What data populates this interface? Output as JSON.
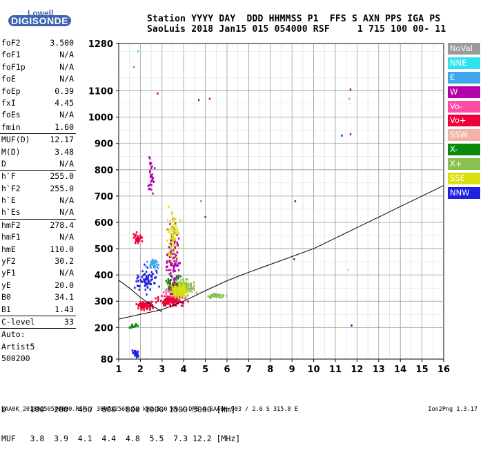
{
  "logo": {
    "top": "Lowell",
    "bottom": "DIGISONDE"
  },
  "header": {
    "labels": "Station YYYY DAY  DDD HHMMSS P1  FFS S AXN PPS IGA PS",
    "values": "SaoLuis 2018 Jan15 015 054000 RSF     1 715 100 00- 11"
  },
  "parameters": [
    [
      {
        "name": "foF2",
        "value": "3.500"
      },
      {
        "name": "foF1",
        "value": "N/A"
      },
      {
        "name": "foF1p",
        "value": "N/A"
      },
      {
        "name": "foE",
        "value": "N/A"
      },
      {
        "name": "foEp",
        "value": "0.39"
      },
      {
        "name": "fxI",
        "value": "4.45"
      },
      {
        "name": "foEs",
        "value": "N/A"
      },
      {
        "name": "fmin",
        "value": "1.60"
      }
    ],
    [
      {
        "name": "MUF(D)",
        "value": "12.17"
      },
      {
        "name": "M(D)",
        "value": "3.48"
      },
      {
        "name": "D",
        "value": "N/A"
      }
    ],
    [
      {
        "name": "h`F",
        "value": "255.0"
      },
      {
        "name": "h`F2",
        "value": "255.0"
      },
      {
        "name": "h`E",
        "value": "N/A"
      },
      {
        "name": "h`Es",
        "value": "N/A"
      }
    ],
    [
      {
        "name": "hmF2",
        "value": "278.4"
      },
      {
        "name": "hmF1",
        "value": "N/A"
      },
      {
        "name": "hmE",
        "value": "110.0"
      },
      {
        "name": "yF2",
        "value": "30.2"
      },
      {
        "name": "yF1",
        "value": "N/A"
      },
      {
        "name": "yE",
        "value": "20.0"
      },
      {
        "name": "B0",
        "value": "34.1"
      },
      {
        "name": "B1",
        "value": "1.43"
      }
    ],
    [
      {
        "name": "C-level",
        "value": "33"
      }
    ],
    [
      {
        "name": "Auto:",
        "value": ""
      },
      {
        "name": "Artist5",
        "value": ""
      },
      {
        "name": "500200",
        "value": ""
      }
    ]
  ],
  "legend": [
    {
      "label": "NoVal",
      "color": "#9a9a9a"
    },
    {
      "label": "NNE",
      "color": "#2ee3ee"
    },
    {
      "label": "E",
      "color": "#3fa6ee"
    },
    {
      "label": "W",
      "color": "#b400a8"
    },
    {
      "label": "Vo-",
      "color": "#ff4aa6"
    },
    {
      "label": "Vo+",
      "color": "#f00038"
    },
    {
      "label": "SSW",
      "color": "#f2b2a6"
    },
    {
      "label": "X-",
      "color": "#0c8a0c"
    },
    {
      "label": "X+",
      "color": "#8ac050"
    },
    {
      "label": "SSE",
      "color": "#d8e010"
    },
    {
      "label": "NNW",
      "color": "#2020e0"
    }
  ],
  "muf_table": {
    "d_row": "D     100  200  400  600  800 1000 1500 3000 [km]",
    "muf_row": "MUF   3.8  3.9  4.1  4.4  4.8  5.5  7.3 12.2 [MHz]"
  },
  "footer": "SAA0K_20180150540000.RSF / 300fx256h 50 kHz 5.0 km / DPS-4 SAA0K 903 / 2.6 S 315.8 E",
  "version": "Ion2Png 1.3.17",
  "chart_data": {
    "type": "scatter",
    "title": "",
    "xlabel": "",
    "ylabel": "",
    "xlim": [
      1,
      16
    ],
    "ylim": [
      80,
      1280
    ],
    "x_ticks": [
      1,
      2,
      3,
      4,
      5,
      6,
      7,
      8,
      9,
      10,
      11,
      12,
      13,
      14,
      15,
      16
    ],
    "y_ticks": [
      80,
      200,
      300,
      400,
      500,
      600,
      700,
      800,
      900,
      1000,
      1100,
      1280
    ],
    "grid": true,
    "clusters": [
      {
        "series": "Vo+",
        "center": [
          3.4,
          300
        ],
        "spread": [
          0.9,
          25
        ],
        "count": 120
      },
      {
        "series": "Vo+",
        "center": [
          2.2,
          285
        ],
        "spread": [
          0.5,
          20
        ],
        "count": 80
      },
      {
        "series": "Vo-",
        "center": [
          3.6,
          340
        ],
        "spread": [
          0.6,
          40
        ],
        "count": 90
      },
      {
        "series": "X-",
        "center": [
          3.6,
          360
        ],
        "spread": [
          0.5,
          50
        ],
        "count": 90
      },
      {
        "series": "X+",
        "center": [
          4.0,
          350
        ],
        "spread": [
          0.7,
          45
        ],
        "count": 90
      },
      {
        "series": "SSE",
        "center": [
          3.8,
          340
        ],
        "spread": [
          0.6,
          40
        ],
        "count": 100
      },
      {
        "series": "NNW",
        "center": [
          2.3,
          380
        ],
        "spread": [
          0.7,
          70
        ],
        "count": 70
      },
      {
        "series": "W",
        "center": [
          3.5,
          480
        ],
        "spread": [
          0.4,
          180
        ],
        "count": 110
      },
      {
        "series": "E",
        "center": [
          2.6,
          440
        ],
        "spread": [
          0.4,
          30
        ],
        "count": 30
      },
      {
        "series": "SSE",
        "center": [
          3.5,
          550
        ],
        "spread": [
          0.4,
          150
        ],
        "count": 70
      },
      {
        "series": "NNW",
        "center": [
          1.8,
          100
        ],
        "spread": [
          0.2,
          20
        ],
        "count": 25
      },
      {
        "series": "X-",
        "center": [
          1.7,
          205
        ],
        "spread": [
          0.3,
          10
        ],
        "count": 20
      },
      {
        "series": "Vo+",
        "center": [
          1.9,
          540
        ],
        "spread": [
          0.3,
          30
        ],
        "count": 30
      },
      {
        "series": "W",
        "center": [
          2.5,
          780
        ],
        "spread": [
          0.2,
          120
        ],
        "count": 30
      },
      {
        "series": "X+",
        "center": [
          5.5,
          320
        ],
        "spread": [
          0.6,
          10
        ],
        "count": 40
      }
    ],
    "points": [
      {
        "x": 4.7,
        "y": 1065,
        "series": "W"
      },
      {
        "x": 5.2,
        "y": 1070,
        "series": "W"
      },
      {
        "x": 11.7,
        "y": 1105,
        "series": "W"
      },
      {
        "x": 11.65,
        "y": 1070,
        "series": "X+"
      },
      {
        "x": 11.3,
        "y": 930,
        "series": "NNW"
      },
      {
        "x": 11.7,
        "y": 935,
        "series": "W"
      },
      {
        "x": 9.15,
        "y": 680,
        "series": "W"
      },
      {
        "x": 9.1,
        "y": 460,
        "series": "W"
      },
      {
        "x": 11.75,
        "y": 208,
        "series": "NNW"
      },
      {
        "x": 11.6,
        "y": 420,
        "series": "SSW"
      },
      {
        "x": 1.9,
        "y": 1250,
        "series": "NNE"
      },
      {
        "x": 1.7,
        "y": 1190,
        "series": "E"
      },
      {
        "x": 4.8,
        "y": 680,
        "series": "E"
      },
      {
        "x": 5.0,
        "y": 620,
        "series": "W"
      },
      {
        "x": 2.8,
        "y": 1090,
        "series": "W"
      },
      {
        "x": 3.0,
        "y": 1000,
        "series": "SSW"
      }
    ],
    "curves": [
      {
        "name": "lower",
        "points": [
          [
            1,
            232
          ],
          [
            2,
            250
          ],
          [
            3,
            268
          ],
          [
            4,
            300
          ],
          [
            5,
            340
          ],
          [
            6,
            378
          ],
          [
            7,
            410
          ],
          [
            8,
            440
          ],
          [
            9,
            470
          ],
          [
            10,
            500
          ],
          [
            11,
            540
          ],
          [
            12,
            580
          ],
          [
            13,
            620
          ],
          [
            14,
            660
          ],
          [
            15,
            700
          ],
          [
            16,
            740
          ]
        ]
      },
      {
        "name": "upper",
        "points": [
          [
            1,
            380
          ],
          [
            1.5,
            350
          ],
          [
            2,
            315
          ],
          [
            2.5,
            285
          ],
          [
            3,
            260
          ]
        ]
      }
    ]
  }
}
